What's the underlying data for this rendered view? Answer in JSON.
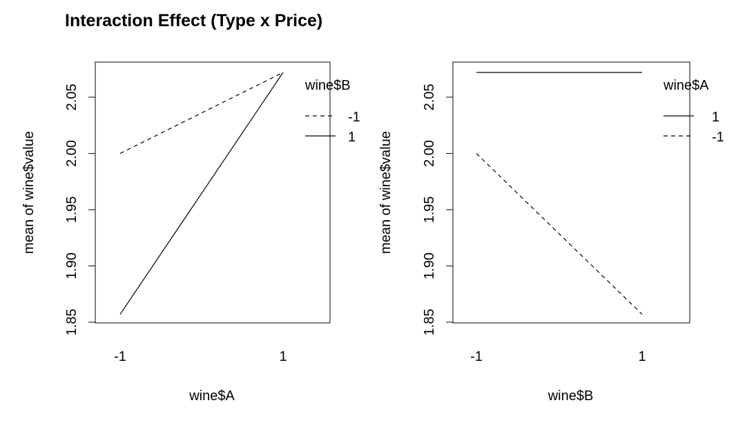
{
  "title": "Interaction Effect (Type x Price)",
  "chart_data": [
    {
      "type": "line",
      "xlabel": "wine$A",
      "ylabel": "mean of  wine$value",
      "categories": [
        "-1",
        "1"
      ],
      "ylim": [
        1.85,
        2.08
      ],
      "yticks": [
        1.85,
        1.9,
        1.95,
        2.0,
        2.05
      ],
      "ytick_labels": [
        "1.85",
        "1.90",
        "1.95",
        "2.00",
        "2.05"
      ],
      "grid": false,
      "legend": {
        "title": "wine$B",
        "placement": "top-right"
      },
      "series": [
        {
          "name": "-1",
          "dash": "dashed",
          "values": [
            2.0,
            2.072
          ]
        },
        {
          "name": "1",
          "dash": "solid",
          "values": [
            1.857,
            2.072
          ]
        }
      ]
    },
    {
      "type": "line",
      "xlabel": "wine$B",
      "ylabel": "mean of  wine$value",
      "categories": [
        "-1",
        "1"
      ],
      "ylim": [
        1.85,
        2.08
      ],
      "yticks": [
        1.85,
        1.9,
        1.95,
        2.0,
        2.05
      ],
      "ytick_labels": [
        "1.85",
        "1.90",
        "1.95",
        "2.00",
        "2.05"
      ],
      "grid": false,
      "legend": {
        "title": "wine$A",
        "placement": "top-right"
      },
      "series": [
        {
          "name": "1",
          "dash": "solid",
          "values": [
            2.072,
            2.072
          ]
        },
        {
          "name": "-1",
          "dash": "dashed",
          "values": [
            2.0,
            1.857
          ]
        }
      ]
    }
  ]
}
